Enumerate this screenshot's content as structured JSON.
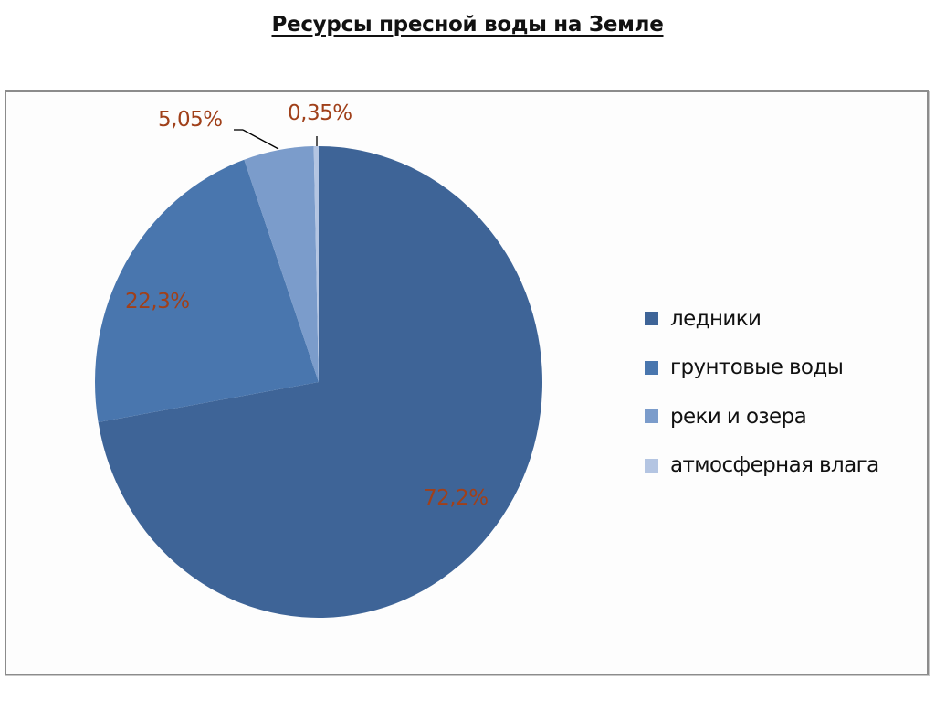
{
  "chart_data": {
    "type": "pie",
    "title": "Ресурсы пресной воды на Земле",
    "categories": [
      "ледники",
      "грунтовые воды",
      "реки и озера",
      "атмосферная влага"
    ],
    "values": [
      72.2,
      22.3,
      5.05,
      0.35
    ],
    "data_labels": [
      "72,2%",
      "22,3%",
      "5,05%",
      "0,35%"
    ],
    "colors": [
      "#3E6497",
      "#4976AE",
      "#7B9CCB",
      "#B4C5E2"
    ],
    "start_angle": 0,
    "direction": "clockwise",
    "legend_position": "right",
    "label_color": "#A0401A"
  },
  "title": "Ресурсы пресной воды на Земле",
  "legend": [
    {
      "label": "ледники",
      "color": "#3E6497"
    },
    {
      "label": "грунтовые воды",
      "color": "#4976AE"
    },
    {
      "label": "реки и озера",
      "color": "#7B9CCB"
    },
    {
      "label": "атмосферная влага",
      "color": "#B4C5E2"
    }
  ],
  "labels": {
    "glaciers": "72,2%",
    "groundwater": "22,3%",
    "rivers_lakes": "5,05%",
    "atmosphere": "0,35%"
  }
}
